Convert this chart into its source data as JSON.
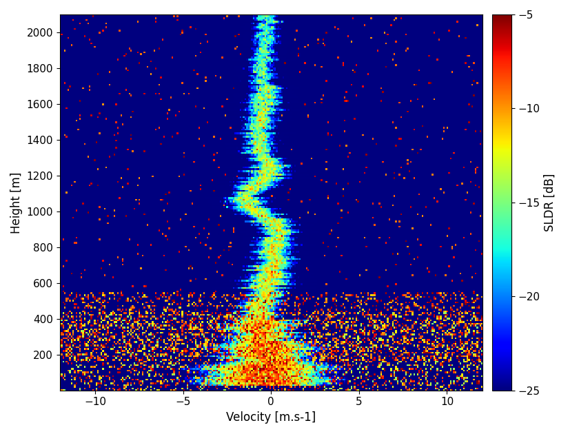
{
  "xlabel": "Velocity [m.s-1]",
  "ylabel": "Height [m]",
  "colorbar_label": "SLDR [dB]",
  "xlim": [
    -12,
    12
  ],
  "ylim": [
    0,
    2100
  ],
  "clim": [
    -25,
    -5
  ],
  "xticks": [
    -10,
    -5,
    0,
    5,
    10
  ],
  "yticks": [
    200,
    400,
    600,
    800,
    1000,
    1200,
    1400,
    1600,
    1800,
    2000
  ],
  "cbar_ticks": [
    -25,
    -20,
    -15,
    -10,
    -5
  ],
  "background_val": -40,
  "seed": 12345
}
